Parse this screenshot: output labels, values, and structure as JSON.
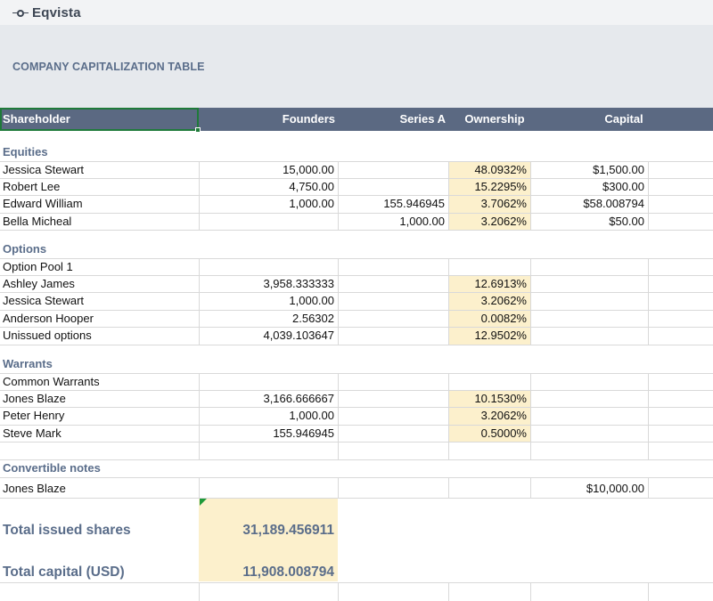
{
  "brand": {
    "name": "Eqvista"
  },
  "page": {
    "title": "COMPANY CAPITALIZATION TABLE"
  },
  "columns": [
    "Shareholder",
    "Founders",
    "Series A",
    "Ownership",
    "Capital"
  ],
  "sections": {
    "equities": {
      "label": "Equities",
      "rows": [
        {
          "name": "Jessica Stewart",
          "founders": "15,000.00",
          "series_a": "",
          "ownership": "48.0932%",
          "capital": "$1,500.00"
        },
        {
          "name": "Robert Lee",
          "founders": "4,750.00",
          "series_a": "",
          "ownership": "15.2295%",
          "capital": "$300.00"
        },
        {
          "name": "Edward William",
          "founders": "1,000.00",
          "series_a": "155.946945",
          "ownership": "3.7062%",
          "capital": "$58.008794"
        },
        {
          "name": "Bella Micheal",
          "founders": "",
          "series_a": "1,000.00",
          "ownership": "3.2062%",
          "capital": "$50.00"
        }
      ]
    },
    "options": {
      "label": "Options",
      "rows": [
        {
          "name": "Option Pool 1",
          "founders": "",
          "series_a": "",
          "ownership": "",
          "capital": ""
        },
        {
          "name": "Ashley James",
          "founders": "3,958.333333",
          "series_a": "",
          "ownership": "12.6913%",
          "capital": ""
        },
        {
          "name": "Jessica Stewart",
          "founders": "1,000.00",
          "series_a": "",
          "ownership": "3.2062%",
          "capital": ""
        },
        {
          "name": "Anderson Hooper",
          "founders": "2.56302",
          "series_a": "",
          "ownership": "0.0082%",
          "capital": ""
        },
        {
          "name": "Unissued options",
          "founders": "4,039.103647",
          "series_a": "",
          "ownership": "12.9502%",
          "capital": ""
        }
      ]
    },
    "warrants": {
      "label": "Warrants",
      "rows": [
        {
          "name": "Common Warrants",
          "founders": "",
          "series_a": "",
          "ownership": "",
          "capital": ""
        },
        {
          "name": "Jones Blaze",
          "founders": "3,166.666667",
          "series_a": "",
          "ownership": "10.1530%",
          "capital": ""
        },
        {
          "name": "Peter Henry",
          "founders": "1,000.00",
          "series_a": "",
          "ownership": "3.2062%",
          "capital": ""
        },
        {
          "name": "Steve Mark",
          "founders": "155.946945",
          "series_a": "",
          "ownership": "0.5000%",
          "capital": ""
        }
      ]
    },
    "convertible_notes": {
      "label": "Convertible notes",
      "rows": [
        {
          "name": "Jones Blaze",
          "founders": "",
          "series_a": "",
          "ownership": "",
          "capital": "$10,000.00"
        }
      ]
    }
  },
  "totals": {
    "issued_shares_label": "Total issued shares",
    "issued_shares_value": "31,189.456911",
    "capital_label": "Total capital (USD)",
    "capital_value": "11,908.008794"
  },
  "colors": {
    "header_bg": "#5b6982",
    "title_bg": "#e6e9ed",
    "highlight": "#fcf0cc",
    "label": "#5a6d8a",
    "selection": "#1f7a3a"
  }
}
